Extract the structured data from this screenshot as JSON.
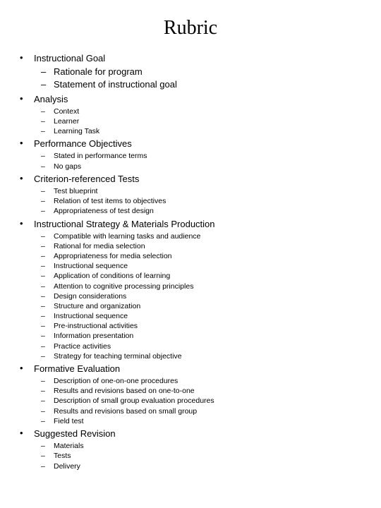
{
  "title": "Rubric",
  "sections": [
    {
      "label": "Instructional Goal",
      "large_sub": true,
      "items": [
        "Rationale for program",
        "Statement of instructional goal"
      ]
    },
    {
      "label": "Analysis",
      "large_sub": false,
      "items": [
        "Context",
        "Learner",
        "Learning Task"
      ]
    },
    {
      "label": "Performance Objectives",
      "large_sub": false,
      "items": [
        "Stated in performance terms",
        "No gaps"
      ]
    },
    {
      "label": "Criterion-referenced Tests",
      "large_sub": false,
      "items": [
        "Test blueprint",
        "Relation of test items to objectives",
        "Appropriateness of test design"
      ]
    },
    {
      "label": "Instructional Strategy & Materials Production",
      "large_sub": false,
      "items": [
        "Compatible with learning tasks and audience",
        "Rational for media selection",
        "Appropriateness for media selection",
        "Instructional sequence",
        "Application of conditions of learning",
        "Attention to cognitive processing principles",
        "Design considerations",
        "Structure and organization",
        "Instructional sequence",
        "Pre-instructional activities",
        "Information presentation",
        "Practice activities",
        "Strategy for teaching terminal objective"
      ]
    },
    {
      "label": "Formative Evaluation",
      "large_sub": false,
      "items": [
        "Description of one-on-one procedures",
        "Results and revisions based on one-to-one",
        "Description of small group evaluation procedures",
        "Results and revisions based on small group",
        "Field test"
      ]
    },
    {
      "label": "Suggested Revision",
      "large_sub": false,
      "items": [
        "Materials",
        "Tests",
        "Delivery"
      ]
    }
  ]
}
